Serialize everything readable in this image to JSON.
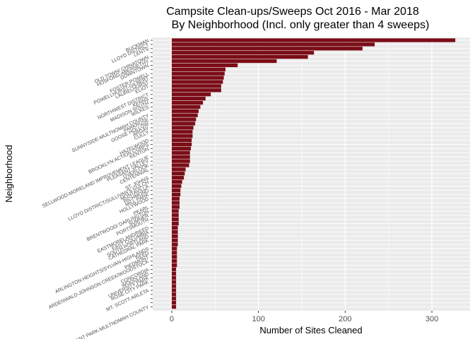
{
  "chart_data": {
    "type": "bar",
    "orientation": "horizontal",
    "title": "Campsite Clean-ups/Sweeps Oct 2016 - Mar 2018",
    "subtitle": "By Neighborhood (Incl. only greater than 4 sweeps)",
    "xlabel": "Number of Sites Cleaned",
    "ylabel": "Neighborhood",
    "xlim": [
      -22,
      344
    ],
    "x_ticks": [
      0,
      100,
      200,
      300
    ],
    "grid": true,
    "bar_color": "#7b0d17",
    "panel_background": "#ebebeb",
    "grid_color": "#ffffff",
    "values": [
      327,
      234,
      220,
      164,
      157,
      121,
      76,
      62,
      61,
      60,
      59,
      57,
      57,
      45,
      39,
      36,
      33,
      31,
      30,
      28,
      27,
      25,
      24,
      24,
      23,
      23,
      22,
      21,
      21,
      21,
      20,
      16,
      15,
      14,
      12,
      11,
      10,
      10,
      9,
      9,
      9,
      8,
      8,
      8,
      8,
      7,
      7,
      7,
      7,
      7,
      6,
      6,
      6,
      6,
      6,
      5,
      5,
      5,
      5,
      5,
      5,
      5,
      5,
      5,
      5
    ],
    "visible_labels": [
      "BUCKMAN",
      "LLOYD DISTRICT",
      "LENTS",
      "OLD TOWN/ CHINATOWN",
      "HOSFORD-ABERNETHY",
      "DOWNTOWN",
      "FOSTER-POWELL",
      "POWELLHURST-GILBERT",
      "LAURELHURST",
      "ELIOT",
      "NORTHWEST DISTRICT",
      "KERNS",
      "MADISON SOUTH",
      "WILKES",
      "SUNNYSIDE-MULTNOMAH COUNTY",
      "PARKROSE",
      "GOOSE HOLLOW",
      "ARGAY",
      "CULLY",
      "HAZELWOOD",
      "BROOKLYN ACTION CORPS",
      "KENTON",
      "SELLWOOD-MORELAND IMPROVEMENT LEAGUE",
      "PLEASANT VALLEY",
      "OVERLOOK",
      "CENTENNIAL",
      "ST. JOHNS",
      "LLOYD DISTRICT/SULLIVAN'S GULCH",
      "MONTAVILLA",
      "RICHMOND",
      "MILL PARK",
      "HOLLYWOOD",
      "PEARL",
      "BRENTWOOD/ DARLINGTON",
      "SUMNER",
      "PORTSMOUTH",
      "EASTMORELAND/REED",
      "EAST COLUMBIA",
      "SOUTH PORTLAND",
      "CATHEDRAL PARK",
      "ARLINGTON HEIGHTS/SYLVAN-HIGHLANDS",
      "REED",
      "PIEDMONT",
      "ARDENWALD-JOHNSON CREEK/WOODSTOCK",
      "CONCORDIA",
      "WOODLAND",
      "UNIVERSITY PARK",
      "ROSE CITY PARK",
      "MT. SCOTT-ARLETA",
      "PLEASANT PARK-MULTNOMAH COUNTY"
    ],
    "label_rows": [
      0,
      1,
      2,
      4,
      5,
      6,
      8,
      9,
      10,
      11,
      13,
      14,
      15,
      16,
      18,
      19,
      20,
      21,
      22,
      24,
      25,
      26,
      28,
      29,
      30,
      31,
      33,
      34,
      35,
      36,
      37,
      38,
      40,
      41,
      42,
      43,
      45,
      46,
      47,
      48,
      50,
      51,
      52,
      53,
      55,
      56,
      57,
      58,
      60,
      64
    ]
  }
}
